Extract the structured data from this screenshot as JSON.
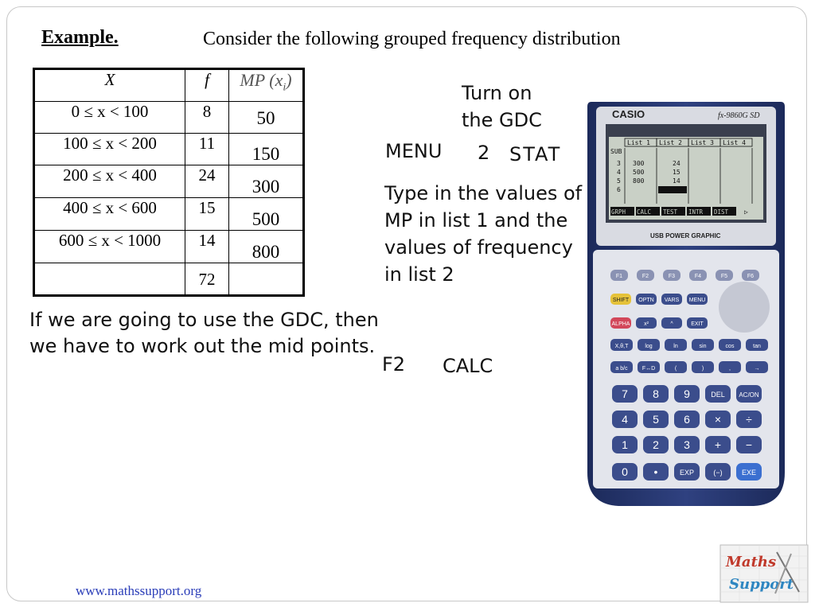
{
  "slide": {
    "heading": "Example.",
    "intro": "Consider the following grouped frequency distribution",
    "footer": "www.mathssupport.org"
  },
  "table": {
    "headers": {
      "x": "X",
      "f": "f",
      "mp": "MP (x",
      "mp_sub": "i",
      "mp_close": ")"
    },
    "rows": [
      {
        "x": "0 ≤ x < 100",
        "f": "8",
        "mp": "50"
      },
      {
        "x": "100 ≤ x < 200",
        "f": "11",
        "mp": "150"
      },
      {
        "x": "200 ≤ x < 400",
        "f": "24",
        "mp": "300"
      },
      {
        "x": "400 ≤ x < 600",
        "f": "15",
        "mp": "500"
      },
      {
        "x": "600 ≤ x < 1000",
        "f": "14",
        "mp": "800"
      }
    ],
    "total": "72"
  },
  "notes": {
    "gdc_note": "If we are going to use the GDC, then we have to work out the mid points.",
    "turn_on": [
      "Turn on",
      "the GDC"
    ],
    "menu": "MENU",
    "menu_num": "2",
    "stat": "STAT",
    "type_in": "Type in the values of MP in list 1 and the values of frequency in list 2",
    "f2": "F2",
    "calc": "CALC"
  },
  "calculator": {
    "brand": "CASIO",
    "model": "fx-9860G SD",
    "usb": "USB POWER GRAPHIC",
    "screen_headers": [
      "List 1",
      "List 2",
      "List 3",
      "List 4"
    ],
    "screen_sub": "SUB",
    "screen_rows": [
      {
        "n": "3",
        "a": "300",
        "b": "24"
      },
      {
        "n": "4",
        "a": "500",
        "b": "15"
      },
      {
        "n": "5",
        "a": "800",
        "b": "14"
      },
      {
        "n": "6",
        "a": "",
        "b": ""
      }
    ],
    "softkeys": [
      "GRPH",
      "CALC",
      "TEST",
      "INTR",
      "DIST",
      "▷"
    ],
    "fkeys": [
      "F1",
      "F2",
      "F3",
      "F4",
      "F5",
      "F6"
    ],
    "row2": [
      "SHIFT",
      "OPTN",
      "VARS",
      "MENU"
    ],
    "row3": [
      "ALPHA",
      "x²",
      "^",
      "EXIT"
    ],
    "row4": [
      "X,θ,T",
      "log",
      "ln",
      "sin",
      "cos",
      "tan"
    ],
    "row5": [
      "a b/c",
      "F↔D",
      "(",
      ")",
      ",",
      "→"
    ],
    "num1": [
      "7",
      "8",
      "9",
      "DEL",
      "AC/ON"
    ],
    "num2": [
      "4",
      "5",
      "6",
      "×",
      "÷"
    ],
    "num3": [
      "1",
      "2",
      "3",
      "+",
      "−"
    ],
    "num4": [
      "0",
      "•",
      "EXP",
      "(−)",
      "EXE"
    ]
  },
  "logo": {
    "line1": "Maths",
    "line2": "Support"
  }
}
